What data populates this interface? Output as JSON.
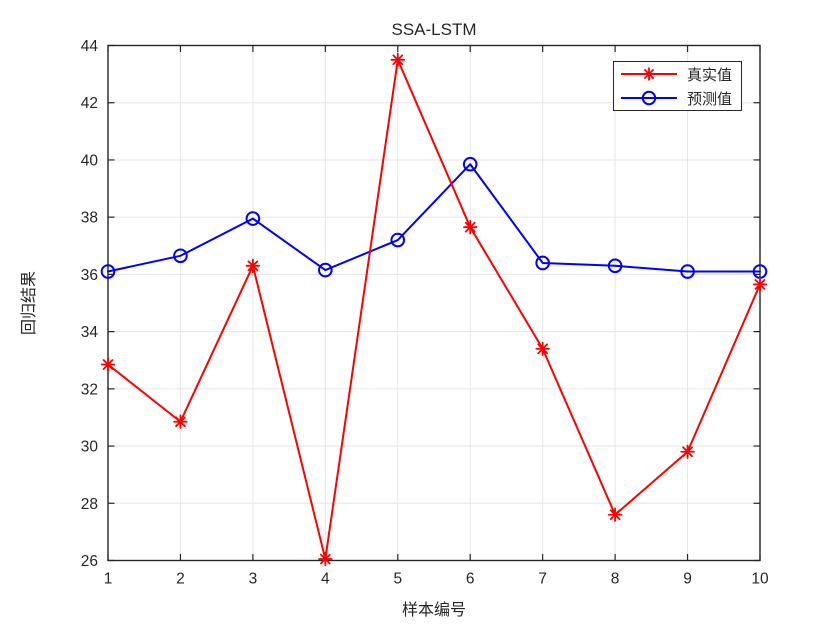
{
  "title": "SSA-LSTM",
  "chart_data": {
    "type": "line",
    "title": "SSA-LSTM",
    "xlabel": "样本编号",
    "ylabel": "回归结果",
    "x": [
      1,
      2,
      3,
      4,
      5,
      6,
      7,
      8,
      9,
      10
    ],
    "xlim": [
      1,
      10
    ],
    "ylim": [
      26,
      44
    ],
    "xticks": [
      1,
      2,
      3,
      4,
      5,
      6,
      7,
      8,
      9,
      10
    ],
    "yticks": [
      26,
      28,
      30,
      32,
      34,
      36,
      38,
      40,
      42,
      44
    ],
    "grid": true,
    "legend_position": "top-right",
    "series": [
      {
        "name": "真实值",
        "color": "#ff0000",
        "marker": "asterisk",
        "values": [
          32.85,
          30.85,
          36.3,
          26.05,
          43.5,
          37.65,
          33.4,
          27.6,
          29.8,
          35.65
        ]
      },
      {
        "name": "预测值",
        "color": "#0000ff",
        "marker": "circle",
        "values": [
          36.1,
          36.65,
          37.95,
          36.15,
          37.2,
          39.85,
          36.4,
          36.3,
          36.1,
          36.1
        ]
      }
    ],
    "colors": {
      "axis": "#262626",
      "grid": "#e6e6e6",
      "background": "#ffffff",
      "tick_label": "#262626"
    }
  }
}
